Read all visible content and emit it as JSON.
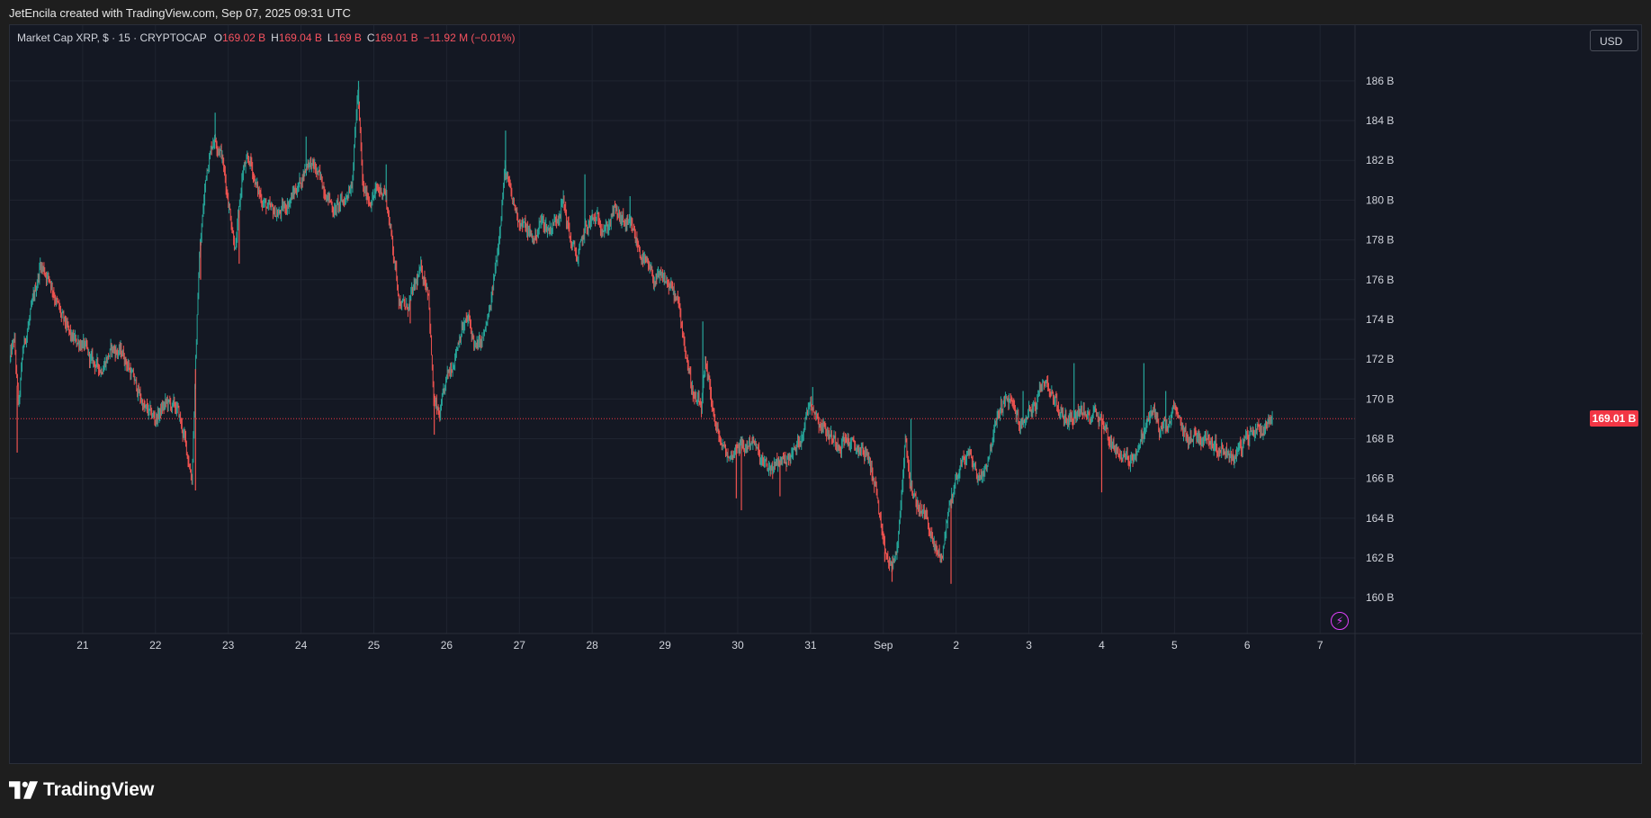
{
  "attribution": "JetEncila created with TradingView.com, Sep 07, 2025 09:31 UTC",
  "brand": "TradingView",
  "legend": {
    "symbol": "Market Cap XRP, $ · 15 · CRYPTOCAP",
    "o_key": "O",
    "o_val": "169.02 B",
    "h_key": "H",
    "h_val": "169.04 B",
    "l_key": "L",
    "l_val": "169 B",
    "c_key": "C",
    "c_val": "169.01 B",
    "change": "−11.92 M (−0.01%)"
  },
  "currency": "USD",
  "last_price_label": "169.01 B",
  "colors": {
    "up": "#26a69a",
    "down": "#ef5350",
    "background": "#141823",
    "grid": "#1f2430",
    "last_price": "#f23645"
  },
  "icons": {
    "alert": "lightning-icon",
    "logo": "tradingview-logo-icon"
  },
  "chart_data": {
    "type": "candlestick",
    "x_tick_labels": [
      "21",
      "22",
      "23",
      "24",
      "25",
      "26",
      "27",
      "28",
      "29",
      "30",
      "31",
      "Sep",
      "2",
      "3",
      "4",
      "5",
      "6",
      "7"
    ],
    "y_tick_labels": [
      "160 B",
      "162 B",
      "164 B",
      "166 B",
      "168 B",
      "170 B",
      "172 B",
      "174 B",
      "176 B",
      "178 B",
      "180 B",
      "182 B",
      "184 B",
      "186 B"
    ],
    "y_ticks": [
      160,
      162,
      164,
      166,
      168,
      170,
      172,
      174,
      176,
      178,
      180,
      182,
      184,
      186
    ],
    "ylim": [
      158.2,
      188.8
    ],
    "x_domain_days": [
      20.0,
      38.48
    ],
    "last_price": 169.01,
    "grid": true,
    "path": [
      [
        20.0,
        172.0
      ],
      [
        20.06,
        173.0
      ],
      [
        20.12,
        169.5
      ],
      [
        20.18,
        172.5
      ],
      [
        20.3,
        174.5
      ],
      [
        20.42,
        176.8
      ],
      [
        20.55,
        176.0
      ],
      [
        20.7,
        174.2
      ],
      [
        20.85,
        173.0
      ],
      [
        21.0,
        172.8
      ],
      [
        21.1,
        172.0
      ],
      [
        21.25,
        171.5
      ],
      [
        21.4,
        172.5
      ],
      [
        21.55,
        172.3
      ],
      [
        21.7,
        171.0
      ],
      [
        21.85,
        169.5
      ],
      [
        22.0,
        169.0
      ],
      [
        22.15,
        169.8
      ],
      [
        22.3,
        169.5
      ],
      [
        22.4,
        168.0
      ],
      [
        22.5,
        166.0
      ],
      [
        22.6,
        177.0
      ],
      [
        22.7,
        181.5
      ],
      [
        22.8,
        183.2
      ],
      [
        22.9,
        182.5
      ],
      [
        23.0,
        180.0
      ],
      [
        23.1,
        177.5
      ],
      [
        23.2,
        181.5
      ],
      [
        23.3,
        182.0
      ],
      [
        23.4,
        180.5
      ],
      [
        23.55,
        179.5
      ],
      [
        23.7,
        179.3
      ],
      [
        23.85,
        180.0
      ],
      [
        24.0,
        181.0
      ],
      [
        24.1,
        182.0
      ],
      [
        24.2,
        181.5
      ],
      [
        24.3,
        180.8
      ],
      [
        24.45,
        179.5
      ],
      [
        24.6,
        180.0
      ],
      [
        24.7,
        181.0
      ],
      [
        24.78,
        185.5
      ],
      [
        24.85,
        180.5
      ],
      [
        24.95,
        180.0
      ],
      [
        25.05,
        180.5
      ],
      [
        25.15,
        180.5
      ],
      [
        25.25,
        178.0
      ],
      [
        25.35,
        175.0
      ],
      [
        25.45,
        174.5
      ],
      [
        25.55,
        175.5
      ],
      [
        25.65,
        176.5
      ],
      [
        25.75,
        175.5
      ],
      [
        25.82,
        170.0
      ],
      [
        25.9,
        169.0
      ],
      [
        26.0,
        171.0
      ],
      [
        26.1,
        172.0
      ],
      [
        26.2,
        173.5
      ],
      [
        26.3,
        174.0
      ],
      [
        26.4,
        172.5
      ],
      [
        26.5,
        173.0
      ],
      [
        26.6,
        174.5
      ],
      [
        26.7,
        177.5
      ],
      [
        26.8,
        181.5
      ],
      [
        26.9,
        180.0
      ],
      [
        27.0,
        179.0
      ],
      [
        27.1,
        178.5
      ],
      [
        27.2,
        178.0
      ],
      [
        27.3,
        179.0
      ],
      [
        27.4,
        178.5
      ],
      [
        27.5,
        179.0
      ],
      [
        27.6,
        180.0
      ],
      [
        27.7,
        178.0
      ],
      [
        27.8,
        177.0
      ],
      [
        27.9,
        178.5
      ],
      [
        28.0,
        179.0
      ],
      [
        28.1,
        179.0
      ],
      [
        28.2,
        178.5
      ],
      [
        28.3,
        179.5
      ],
      [
        28.4,
        179.0
      ],
      [
        28.55,
        178.5
      ],
      [
        28.7,
        177.0
      ],
      [
        28.85,
        176.0
      ],
      [
        29.0,
        176.0
      ],
      [
        29.1,
        175.5
      ],
      [
        29.2,
        174.5
      ],
      [
        29.3,
        172.0
      ],
      [
        29.4,
        170.0
      ],
      [
        29.5,
        169.5
      ],
      [
        29.55,
        171.5
      ],
      [
        29.62,
        170.5
      ],
      [
        29.7,
        168.5
      ],
      [
        29.8,
        167.5
      ],
      [
        29.9,
        167.0
      ],
      [
        30.0,
        167.8
      ],
      [
        30.1,
        167.5
      ],
      [
        30.2,
        168.0
      ],
      [
        30.3,
        167.0
      ],
      [
        30.4,
        166.5
      ],
      [
        30.5,
        166.5
      ],
      [
        30.6,
        167.0
      ],
      [
        30.7,
        167.0
      ],
      [
        30.8,
        167.5
      ],
      [
        30.9,
        168.5
      ],
      [
        31.0,
        170.0
      ],
      [
        31.1,
        169.0
      ],
      [
        31.2,
        168.5
      ],
      [
        31.3,
        168.0
      ],
      [
        31.4,
        167.8
      ],
      [
        31.5,
        168.0
      ],
      [
        31.6,
        167.5
      ],
      [
        31.7,
        167.5
      ],
      [
        31.8,
        167.0
      ],
      [
        31.9,
        165.5
      ],
      [
        32.0,
        162.5
      ],
      [
        32.1,
        161.5
      ],
      [
        32.2,
        162.5
      ],
      [
        32.3,
        168.0
      ],
      [
        32.4,
        165.0
      ],
      [
        32.5,
        164.5
      ],
      [
        32.6,
        164.0
      ],
      [
        32.7,
        162.5
      ],
      [
        32.8,
        162.0
      ],
      [
        32.9,
        164.5
      ],
      [
        33.0,
        166.0
      ],
      [
        33.1,
        167.0
      ],
      [
        33.2,
        167.2
      ],
      [
        33.3,
        166.0
      ],
      [
        33.4,
        166.5
      ],
      [
        33.5,
        168.0
      ],
      [
        33.6,
        169.5
      ],
      [
        33.7,
        170.0
      ],
      [
        33.8,
        169.5
      ],
      [
        33.9,
        168.5
      ],
      [
        34.0,
        169.5
      ],
      [
        34.1,
        169.5
      ],
      [
        34.2,
        171.0
      ],
      [
        34.3,
        170.5
      ],
      [
        34.4,
        169.5
      ],
      [
        34.5,
        169.0
      ],
      [
        34.6,
        169.0
      ],
      [
        34.7,
        169.5
      ],
      [
        34.8,
        169.0
      ],
      [
        34.9,
        169.5
      ],
      [
        35.0,
        169.0
      ],
      [
        35.1,
        168.0
      ],
      [
        35.2,
        167.5
      ],
      [
        35.3,
        167.0
      ],
      [
        35.4,
        167.0
      ],
      [
        35.5,
        167.5
      ],
      [
        35.6,
        168.5
      ],
      [
        35.7,
        169.5
      ],
      [
        35.8,
        168.5
      ],
      [
        35.9,
        168.5
      ],
      [
        36.0,
        169.5
      ],
      [
        36.1,
        168.5
      ],
      [
        36.2,
        168.0
      ],
      [
        36.3,
        168.2
      ],
      [
        36.4,
        168.0
      ],
      [
        36.5,
        168.0
      ],
      [
        36.6,
        167.5
      ],
      [
        36.7,
        167.5
      ],
      [
        36.8,
        167.0
      ],
      [
        36.9,
        167.5
      ],
      [
        37.0,
        168.0
      ],
      [
        37.1,
        168.5
      ],
      [
        37.2,
        168.5
      ],
      [
        37.3,
        169.0
      ],
      [
        37.35,
        169.01
      ]
    ],
    "spikes": [
      [
        20.1,
        167.3
      ],
      [
        22.55,
        165.4
      ],
      [
        22.62,
        176.0
      ],
      [
        22.82,
        184.4
      ],
      [
        23.15,
        176.8
      ],
      [
        24.07,
        183.2
      ],
      [
        24.79,
        186.0
      ],
      [
        25.17,
        181.8
      ],
      [
        25.5,
        173.8
      ],
      [
        25.83,
        168.2
      ],
      [
        26.81,
        183.5
      ],
      [
        27.9,
        181.3
      ],
      [
        28.52,
        180.2
      ],
      [
        29.52,
        173.9
      ],
      [
        29.98,
        165.0
      ],
      [
        30.05,
        164.4
      ],
      [
        30.58,
        165.1
      ],
      [
        31.03,
        170.6
      ],
      [
        32.02,
        161.8
      ],
      [
        32.12,
        160.8
      ],
      [
        32.38,
        169.0
      ],
      [
        32.93,
        160.7
      ],
      [
        33.92,
        170.4
      ],
      [
        34.62,
        171.8
      ],
      [
        35.0,
        165.3
      ],
      [
        35.58,
        171.8
      ],
      [
        35.88,
        170.4
      ]
    ]
  }
}
